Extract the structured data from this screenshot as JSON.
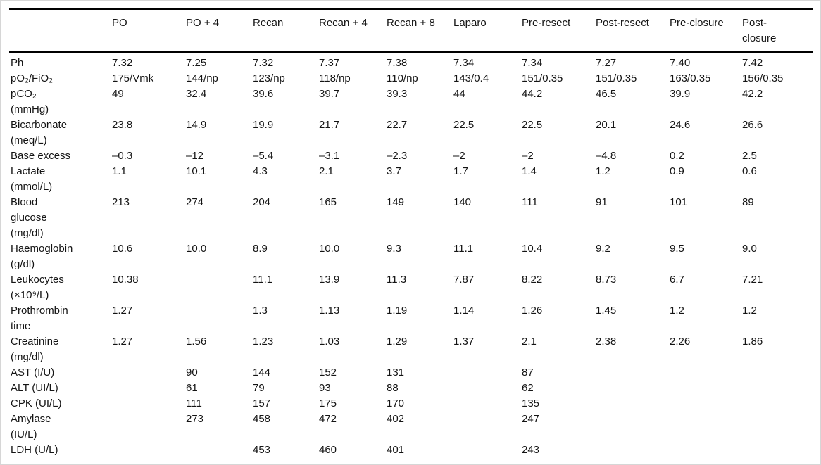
{
  "table": {
    "columns": [
      "",
      "PO",
      "PO + 4",
      "Recan",
      "Recan + 4",
      "Recan + 8",
      "Laparo",
      "Pre-resect",
      "Post-resect",
      "Pre-closure",
      "Post-\nclosure"
    ],
    "rows": [
      {
        "label": "Ph",
        "values": [
          "7.32",
          "7.25",
          "7.32",
          "7.37",
          "7.38",
          "7.34",
          "7.34",
          "7.27",
          "7.40",
          "7.42"
        ]
      },
      {
        "label": "pO₂/FiO₂",
        "values": [
          "175/Vmk",
          "144/np",
          "123/np",
          "118/np",
          "110/np",
          "143/0.4",
          "151/0.35",
          "151/0.35",
          "163/0.35",
          "156/0.35"
        ]
      },
      {
        "label": "pCO₂\n(mmHg)",
        "values": [
          "49",
          "32.4",
          "39.6",
          "39.7",
          "39.3",
          "44",
          "44.2",
          "46.5",
          "39.9",
          "42.2"
        ]
      },
      {
        "label": "Bicarbonate\n(meq/L)",
        "values": [
          "23.8",
          "14.9",
          "19.9",
          "21.7",
          "22.7",
          "22.5",
          "22.5",
          "20.1",
          "24.6",
          "26.6"
        ]
      },
      {
        "label": "Base excess",
        "values": [
          "–0.3",
          "–12",
          "–5.4",
          "–3.1",
          "–2.3",
          "–2",
          "–2",
          "–4.8",
          "0.2",
          "2.5"
        ]
      },
      {
        "label": "Lactate\n(mmol/L)",
        "values": [
          "1.1",
          "10.1",
          "4.3",
          "2.1",
          "3.7",
          "1.7",
          "1.4",
          "1.2",
          "0.9",
          "0.6"
        ]
      },
      {
        "label": "Blood\nglucose\n(mg/dl)",
        "values": [
          "213",
          "274",
          "204",
          "165",
          "149",
          "140",
          "111",
          "91",
          "101",
          "89"
        ]
      },
      {
        "label": "Haemoglobin\n(g/dl)",
        "values": [
          "10.6",
          "10.0",
          "8.9",
          "10.0",
          "9.3",
          "11.1",
          "10.4",
          "9.2",
          "9.5",
          "9.0"
        ]
      },
      {
        "label": "Leukocytes\n(×10⁹/L)",
        "values": [
          "10.38",
          "",
          "11.1",
          "13.9",
          "11.3",
          "7.87",
          "8.22",
          "8.73",
          "6.7",
          "7.21"
        ]
      },
      {
        "label": "Prothrombin\ntime",
        "values": [
          "1.27",
          "",
          "1.3",
          "1.13",
          "1.19",
          "1.14",
          "1.26",
          "1.45",
          "1.2",
          "1.2"
        ]
      },
      {
        "label": "Creatinine\n(mg/dl)",
        "values": [
          "1.27",
          "1.56",
          "1.23",
          "1.03",
          "1.29",
          "1.37",
          "2.1",
          "2.38",
          "2.26",
          "1.86"
        ]
      },
      {
        "label": "AST (I/U)",
        "values": [
          "",
          "90",
          "144",
          "152",
          "131",
          "",
          "87",
          "",
          "",
          ""
        ]
      },
      {
        "label": "ALT (UI/L)",
        "values": [
          "",
          "61",
          "79",
          "93",
          "88",
          "",
          "62",
          "",
          "",
          ""
        ]
      },
      {
        "label": "CPK (UI/L)",
        "values": [
          "",
          "111",
          "157",
          "175",
          "170",
          "",
          "135",
          "",
          "",
          ""
        ]
      },
      {
        "label": "Amylase\n(IU/L)",
        "values": [
          "",
          "273",
          "458",
          "472",
          "402",
          "",
          "247",
          "",
          "",
          ""
        ]
      },
      {
        "label": "LDH (U/L)",
        "values": [
          "",
          "",
          "453",
          "460",
          "401",
          "",
          "243",
          "",
          "",
          ""
        ]
      }
    ]
  }
}
